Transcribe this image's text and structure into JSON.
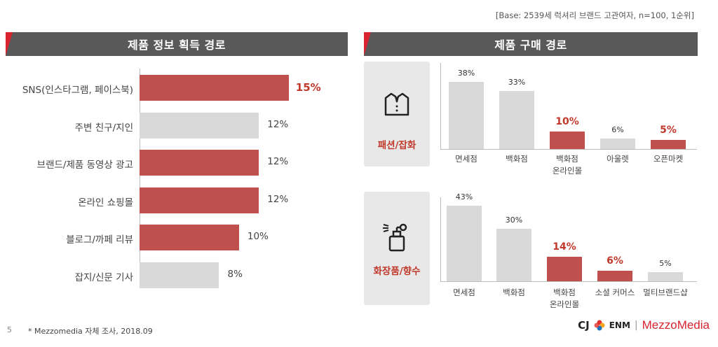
{
  "base_note": "[Base: 2539세 럭셔리 브랜드 고관여자, n=100, 1순위]",
  "left_title": "제품 정보 획득 경로",
  "right_title": "제품 구매 경로",
  "footnote": "* Mezzomedia 자체 조사, 2018.09",
  "page_number": "5",
  "logo": {
    "cj": "CJ",
    "enm": "ENM",
    "sep": "|",
    "mezzo": "MezzoMedia"
  },
  "colors": {
    "highlight": "#c0504d",
    "normal": "#d9d9d9",
    "header": "#595959",
    "accent": "#d9232e"
  },
  "chart_data": [
    {
      "type": "bar",
      "orientation": "horizontal",
      "title": "제품 정보 획득 경로",
      "categories": [
        "SNS(인스타그램, 페이스북)",
        "주변 친구/지인",
        "브랜드/제품 동영상 광고",
        "온라인 쇼핑몰",
        "블로그/까페 리뷰",
        "잡지/신문 기사"
      ],
      "values": [
        15,
        12,
        12,
        12,
        10,
        8
      ],
      "value_labels": [
        "15%",
        "12%",
        "12%",
        "12%",
        "10%",
        "8%"
      ],
      "highlighted": [
        true,
        false,
        true,
        true,
        true,
        false
      ],
      "xlim": [
        0,
        17
      ]
    },
    {
      "type": "bar",
      "title": "패션/잡화",
      "categories": [
        "면세점",
        "백화점",
        "백화점 온라인몰",
        "아울렛",
        "오픈마켓"
      ],
      "values": [
        38,
        33,
        10,
        6,
        5
      ],
      "value_labels": [
        "38%",
        "33%",
        "10%",
        "6%",
        "5%"
      ],
      "highlighted": [
        false,
        false,
        true,
        false,
        true
      ],
      "ylim": [
        0,
        40
      ]
    },
    {
      "type": "bar",
      "title": "화장품/향수",
      "categories": [
        "면세점",
        "백화점",
        "백화점 온라인몰",
        "소셜 커머스",
        "멀티브랜드샵"
      ],
      "values": [
        43,
        30,
        14,
        6,
        5
      ],
      "value_labels": [
        "43%",
        "30%",
        "14%",
        "6%",
        "5%"
      ],
      "highlighted": [
        false,
        false,
        true,
        true,
        false
      ],
      "ylim": [
        0,
        45
      ]
    }
  ]
}
